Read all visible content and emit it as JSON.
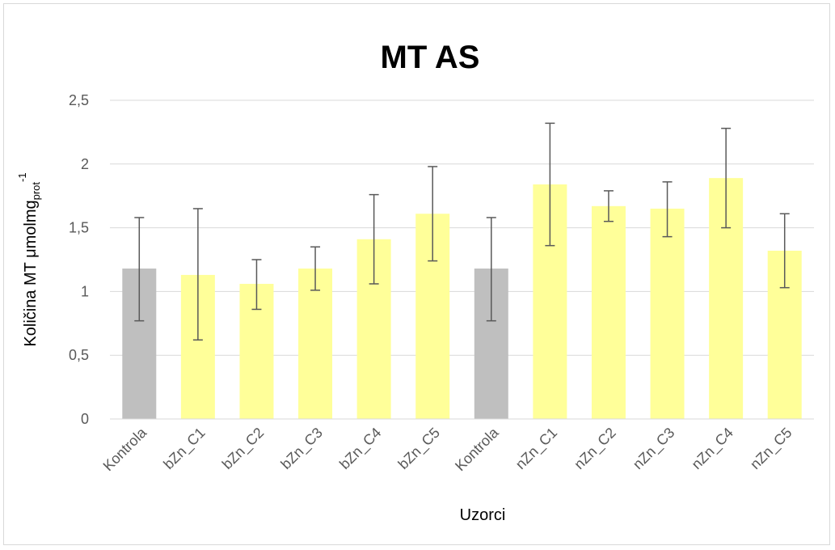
{
  "chart_data": {
    "type": "bar",
    "title": "MT AS",
    "xlabel": "Uzorci",
    "ylabel": {
      "main": "Količina MT μmolmg",
      "sub": "prot",
      "sup": "-1"
    },
    "categories": [
      "Kontrola",
      "bZn_C1",
      "bZn_C2",
      "bZn_C3",
      "bZn_C4",
      "bZn_C5",
      "Kontrola",
      "nZn_C1",
      "nZn_C2",
      "nZn_C3",
      "nZn_C4",
      "nZn_C5"
    ],
    "values": [
      1.18,
      1.13,
      1.06,
      1.18,
      1.41,
      1.61,
      1.18,
      1.84,
      1.67,
      1.65,
      1.89,
      1.32
    ],
    "error_low": [
      0.77,
      0.62,
      0.86,
      1.01,
      1.06,
      1.24,
      0.77,
      1.36,
      1.55,
      1.43,
      1.5,
      1.03
    ],
    "error_high": [
      1.58,
      1.65,
      1.25,
      1.35,
      1.76,
      1.98,
      1.58,
      2.32,
      1.79,
      1.86,
      2.28,
      1.61
    ],
    "bar_colors": [
      "#bfbfbf",
      "#ffff99",
      "#ffff99",
      "#ffff99",
      "#ffff99",
      "#ffff99",
      "#bfbfbf",
      "#ffff99",
      "#ffff99",
      "#ffff99",
      "#ffff99",
      "#ffff99"
    ],
    "error_color": "#595959",
    "gridline_color": "#d9d9d9",
    "ylim": [
      0,
      2.5
    ],
    "yticks": [
      0,
      0.5,
      1,
      1.5,
      2,
      2.5
    ],
    "ytick_labels": [
      "0",
      "0,5",
      "1",
      "1,5",
      "2",
      "2,5"
    ],
    "grid": true,
    "legend": "none"
  }
}
